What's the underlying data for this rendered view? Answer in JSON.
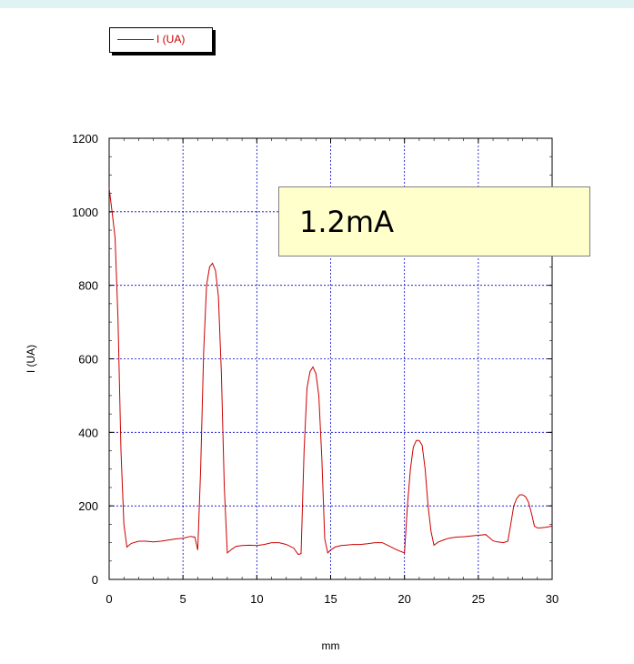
{
  "chart_data": {
    "type": "line",
    "xlabel": "mm",
    "ylabel": "I (UA)",
    "xlim": [
      0,
      30
    ],
    "ylim": [
      0,
      1200
    ],
    "xticks": [
      0,
      5,
      10,
      15,
      20,
      25,
      30
    ],
    "yticks": [
      0,
      200,
      400,
      600,
      800,
      1000,
      1200
    ],
    "grid": true,
    "legend_position": "top-left",
    "annotation": "1.2mA",
    "series": [
      {
        "name": "I (UA)",
        "color": "#cc0000",
        "x": [
          0,
          0.2,
          0.4,
          0.6,
          0.8,
          1.0,
          1.2,
          1.5,
          2.0,
          2.5,
          3.0,
          3.5,
          4.0,
          4.5,
          5.0,
          5.5,
          5.8,
          6.0,
          6.2,
          6.4,
          6.6,
          6.8,
          7.0,
          7.2,
          7.4,
          7.6,
          7.8,
          8.0,
          8.3,
          8.6,
          9.0,
          9.5,
          10.0,
          10.5,
          11.0,
          11.5,
          12.0,
          12.5,
          12.8,
          13.0,
          13.2,
          13.4,
          13.6,
          13.8,
          14.0,
          14.2,
          14.4,
          14.6,
          14.8,
          15.0,
          15.3,
          15.7,
          16.0,
          16.5,
          17.0,
          17.5,
          18.0,
          18.5,
          19.0,
          19.5,
          20.0,
          20.2,
          20.4,
          20.6,
          20.8,
          21.0,
          21.2,
          21.4,
          21.6,
          21.8,
          22.0,
          22.3,
          22.7,
          23.0,
          23.5,
          24.0,
          24.5,
          25.0,
          25.5,
          25.8,
          26.0,
          26.3,
          26.7,
          27.0,
          27.2,
          27.4,
          27.6,
          27.8,
          28.0,
          28.2,
          28.4,
          28.6,
          28.8,
          29.0,
          29.2,
          29.6,
          30.0
        ],
        "y": [
          1065,
          1000,
          930,
          710,
          350,
          150,
          88,
          98,
          104,
          104,
          102,
          104,
          107,
          110,
          112,
          117,
          115,
          80,
          300,
          620,
          800,
          850,
          860,
          840,
          770,
          560,
          250,
          72,
          82,
          90,
          92,
          93,
          92,
          95,
          100,
          100,
          95,
          85,
          68,
          70,
          350,
          520,
          565,
          578,
          560,
          500,
          330,
          110,
          72,
          80,
          88,
          92,
          93,
          95,
          95,
          97,
          100,
          100,
          90,
          80,
          72,
          200,
          300,
          360,
          378,
          378,
          365,
          300,
          200,
          130,
          93,
          102,
          108,
          112,
          115,
          116,
          118,
          120,
          122,
          112,
          105,
          102,
          100,
          104,
          150,
          200,
          220,
          230,
          230,
          225,
          210,
          180,
          145,
          140,
          140,
          142,
          145
        ]
      }
    ]
  }
}
